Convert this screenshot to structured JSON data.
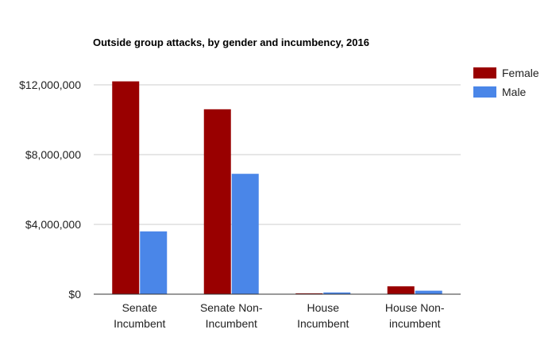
{
  "chart_data": {
    "type": "bar",
    "title": "Outside group attacks, by gender and incumbency, 2016",
    "xlabel": "",
    "ylabel": "",
    "categories": [
      [
        "Senate",
        "Incumbent"
      ],
      [
        "Senate Non-",
        "Incumbent"
      ],
      [
        "House",
        "Incumbent"
      ],
      [
        "House Non-",
        "incumbent"
      ]
    ],
    "series": [
      {
        "name": "Female",
        "color": "#990000",
        "values": [
          12200000,
          10600000,
          50000,
          450000
        ]
      },
      {
        "name": "Male",
        "color": "#4a86e8",
        "values": [
          3600000,
          6900000,
          100000,
          200000
        ]
      }
    ],
    "ylim": [
      0,
      12000000
    ],
    "yticks": [
      0,
      4000000,
      8000000,
      12000000
    ],
    "ytick_labels": [
      "$0",
      "$4,000,000",
      "$8,000,000",
      "$12,000,000"
    ],
    "grid": true,
    "legend_position": "top-right"
  }
}
